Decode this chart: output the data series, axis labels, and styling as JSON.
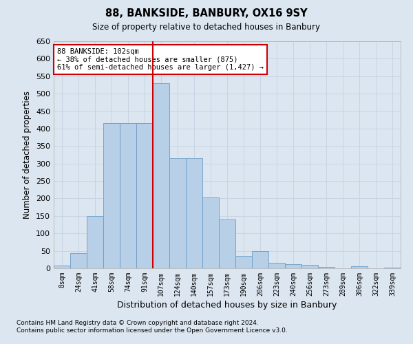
{
  "title_line1": "88, BANKSIDE, BANBURY, OX16 9SY",
  "title_line2": "Size of property relative to detached houses in Banbury",
  "xlabel": "Distribution of detached houses by size in Banbury",
  "ylabel": "Number of detached properties",
  "categories": [
    "8sqm",
    "24sqm",
    "41sqm",
    "58sqm",
    "74sqm",
    "91sqm",
    "107sqm",
    "124sqm",
    "140sqm",
    "157sqm",
    "173sqm",
    "190sqm",
    "206sqm",
    "223sqm",
    "240sqm",
    "256sqm",
    "273sqm",
    "289sqm",
    "306sqm",
    "322sqm",
    "339sqm"
  ],
  "values": [
    7,
    43,
    150,
    415,
    415,
    415,
    530,
    315,
    315,
    202,
    140,
    35,
    49,
    15,
    12,
    9,
    4,
    0,
    5,
    0,
    1
  ],
  "bar_color": "#b8cfe8",
  "bar_edge_color": "#6a9cc8",
  "vline_x": 6.0,
  "vline_color": "#cc0000",
  "annotation_text": "88 BANKSIDE: 102sqm\n← 38% of detached houses are smaller (875)\n61% of semi-detached houses are larger (1,427) →",
  "annotation_box_color": "#ffffff",
  "annotation_box_edge": "#cc0000",
  "ylim": [
    0,
    650
  ],
  "yticks": [
    0,
    50,
    100,
    150,
    200,
    250,
    300,
    350,
    400,
    450,
    500,
    550,
    600,
    650
  ],
  "grid_color": "#c8d4e4",
  "bg_color": "#dce6f0",
  "footnote1": "Contains HM Land Registry data © Crown copyright and database right 2024.",
  "footnote2": "Contains public sector information licensed under the Open Government Licence v3.0."
}
